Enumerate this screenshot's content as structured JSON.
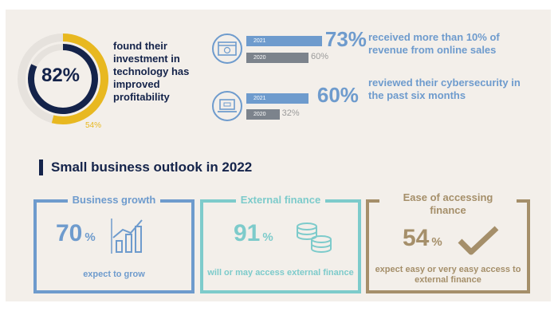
{
  "colors": {
    "navy": "#14234a",
    "gold": "#e8b820",
    "steel_blue": "#6e9bcd",
    "grey_bar": "#7c838c",
    "teal": "#7dcbcb",
    "tan": "#a58f6a",
    "background": "#f3efea"
  },
  "chart_data": [
    {
      "type": "pie",
      "subtype": "donut",
      "series": [
        {
          "name": "",
          "label": "82%",
          "value": 82
        },
        {
          "name": "",
          "label": "54%",
          "value": 54
        }
      ],
      "center_label": "82%",
      "secondary_label": "54%",
      "text": "found their investment in technology has improved profitability"
    },
    {
      "type": "bar",
      "orientation": "horizontal",
      "icon": "browser-icon",
      "categories": [
        "2021",
        "2020"
      ],
      "values": [
        73,
        60
      ],
      "labels": [
        "73%",
        "60%"
      ],
      "description": "received more than 10% of revenue from online sales"
    },
    {
      "type": "bar",
      "orientation": "horizontal",
      "icon": "laptop-icon",
      "categories": [
        "2021",
        "2020"
      ],
      "values": [
        60,
        32
      ],
      "labels": [
        "60%",
        "32%"
      ],
      "description": "reviewed their cybersecurity in the past six months"
    }
  ],
  "section_title": "Small business outlook in 2022",
  "cards": [
    {
      "title": "Business growth",
      "value": "70",
      "pct": "%",
      "desc": "expect to grow",
      "icon": "bar-growth-icon",
      "color": "#6e9bcd"
    },
    {
      "title": "External finance",
      "value": "91",
      "pct": "%",
      "desc": "will or may access external finance",
      "icon": "coins-icon",
      "color": "#7dcbcb"
    },
    {
      "title": "Ease of accessing finance",
      "value": "54",
      "pct": "%",
      "desc": "expect easy or very easy access to external finance",
      "icon": "checkmark-icon",
      "color": "#a58f6a"
    }
  ]
}
